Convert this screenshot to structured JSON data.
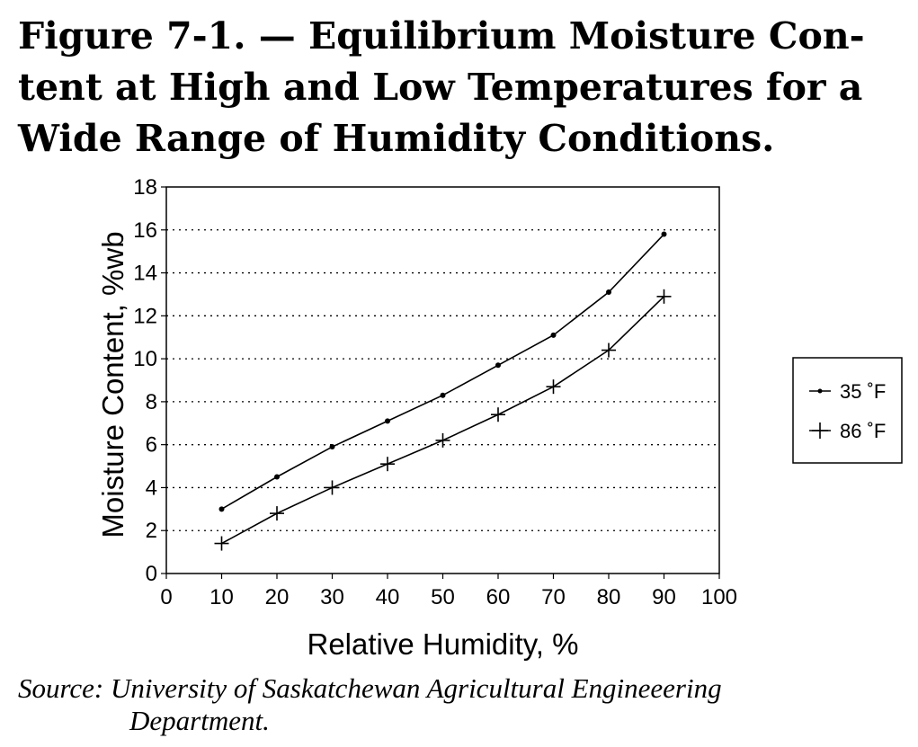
{
  "figure": {
    "title_lines": [
      "Figure 7-1. — Equilibrium Moisture Con-",
      "tent at High and Low Temperatures for a",
      "Wide Range of Humidity Conditions."
    ],
    "source_lines": [
      "Source: University of Saskatchewan Agricultural Engineeering",
      "Department."
    ]
  },
  "chart_data": {
    "type": "line",
    "title": "",
    "xlabel": "Relative Humidity, %",
    "ylabel": "Moisture Content, %wb",
    "xlim": [
      0,
      100
    ],
    "ylim": [
      0,
      18
    ],
    "x_ticks": [
      0,
      10,
      20,
      30,
      40,
      50,
      60,
      70,
      80,
      90,
      100
    ],
    "y_ticks": [
      0,
      2,
      4,
      6,
      8,
      10,
      12,
      14,
      16,
      18
    ],
    "grid": "horizontal dotted",
    "legend_position": "right",
    "x": [
      10,
      20,
      30,
      40,
      50,
      60,
      70,
      80,
      90
    ],
    "series": [
      {
        "name": "35 ˚F",
        "marker": "dot",
        "values": [
          3.0,
          4.5,
          5.9,
          7.1,
          8.3,
          9.7,
          11.1,
          13.1,
          15.8
        ]
      },
      {
        "name": "86 ˚F",
        "marker": "plus",
        "values": [
          1.4,
          2.8,
          4.0,
          5.1,
          6.2,
          7.4,
          8.7,
          10.4,
          12.9
        ]
      }
    ]
  }
}
